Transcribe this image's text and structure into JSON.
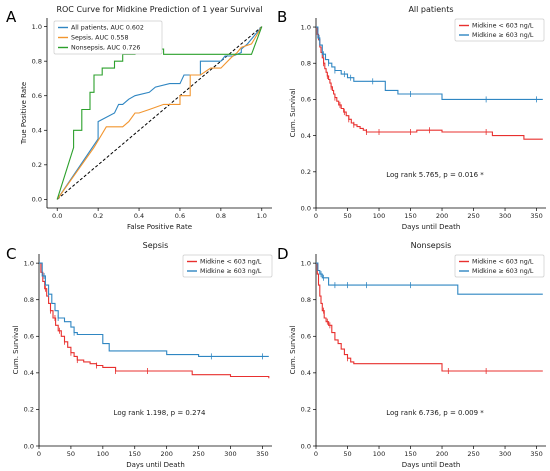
{
  "panel_letters": [
    "A",
    "B",
    "C",
    "D"
  ],
  "colors": {
    "red": "#e8302f",
    "blue": "#2f86c2",
    "orange": "#f2952f",
    "green": "#2ca02c",
    "diag": "#000000"
  },
  "chart_data": [
    {
      "letter": "A",
      "type": "line",
      "title": "ROC Curve for Midkine Prediction of 1 year Survival",
      "xlabel": "False Positive Rate",
      "ylabel": "True Positive Rate",
      "xlim": [
        -0.05,
        1.05
      ],
      "ylim": [
        -0.05,
        1.05
      ],
      "xticks": [
        "0.0",
        "0.2",
        "0.4",
        "0.6",
        "0.8",
        "1.0"
      ],
      "yticks": [
        "0.0",
        "0.2",
        "0.4",
        "0.6",
        "0.8",
        "1.0"
      ],
      "legend_position": "top-left",
      "reference_line": {
        "x": [
          0,
          1
        ],
        "y": [
          0,
          1
        ],
        "style": "dashed"
      },
      "series": [
        {
          "name": "All patients, AUC 0.602",
          "color": "#2f86c2",
          "x": [
            0,
            0.2,
            0.2,
            0.28,
            0.3,
            0.32,
            0.35,
            0.38,
            0.45,
            0.48,
            0.55,
            0.6,
            0.62,
            0.7,
            0.7,
            0.8,
            0.82,
            0.86,
            0.9,
            0.9,
            0.93,
            1.0
          ],
          "y": [
            0,
            0.35,
            0.45,
            0.5,
            0.55,
            0.55,
            0.58,
            0.6,
            0.62,
            0.65,
            0.67,
            0.67,
            0.72,
            0.72,
            0.8,
            0.8,
            0.83,
            0.83,
            0.85,
            0.87,
            0.9,
            1.0
          ]
        },
        {
          "name": "Sepsis, AUC 0.558",
          "color": "#f2952f",
          "x": [
            0,
            0.18,
            0.24,
            0.32,
            0.35,
            0.38,
            0.4,
            0.45,
            0.52,
            0.6,
            0.6,
            0.65,
            0.65,
            0.7,
            0.75,
            0.8,
            0.85,
            0.88,
            0.9,
            0.95,
            1.0
          ],
          "y": [
            0,
            0.3,
            0.42,
            0.42,
            0.45,
            0.5,
            0.5,
            0.52,
            0.55,
            0.55,
            0.6,
            0.6,
            0.72,
            0.72,
            0.76,
            0.76,
            0.82,
            0.85,
            0.88,
            0.9,
            1.0
          ]
        },
        {
          "name": "Nonsepsis, AUC 0.726",
          "color": "#2ca02c",
          "x": [
            0,
            0.08,
            0.08,
            0.12,
            0.12,
            0.16,
            0.16,
            0.18,
            0.18,
            0.22,
            0.22,
            0.28,
            0.28,
            0.32,
            0.32,
            0.38,
            0.38,
            0.52,
            0.52,
            0.95,
            1.0
          ],
          "y": [
            0,
            0.3,
            0.4,
            0.4,
            0.52,
            0.52,
            0.62,
            0.62,
            0.72,
            0.72,
            0.76,
            0.76,
            0.8,
            0.8,
            0.84,
            0.84,
            0.87,
            0.87,
            0.84,
            0.84,
            1.0
          ]
        }
      ]
    },
    {
      "letter": "B",
      "type": "line",
      "title": "All patients",
      "xlabel": "Days until Death",
      "ylabel": "Cum. Survival",
      "xlim": [
        0,
        365
      ],
      "ylim": [
        0,
        1.05
      ],
      "xticks": [
        0,
        50,
        100,
        150,
        200,
        250,
        300,
        350
      ],
      "yticks": [
        "0.0",
        "0.2",
        "0.4",
        "0.6",
        "0.8",
        "1.0"
      ],
      "legend_position": "top-right",
      "annotation": "Log rank 5.765, p = 0.016 *",
      "series": [
        {
          "name": "Midkine < 603 ng/L",
          "color": "#e8302f",
          "x": [
            0,
            2,
            4,
            6,
            8,
            10,
            12,
            14,
            16,
            18,
            20,
            22,
            24,
            26,
            28,
            30,
            33,
            36,
            40,
            44,
            48,
            52,
            56,
            60,
            65,
            70,
            75,
            80,
            90,
            100,
            110,
            120,
            140,
            160,
            180,
            200,
            240,
            280,
            330,
            360
          ],
          "y": [
            1.0,
            0.96,
            0.93,
            0.89,
            0.86,
            0.83,
            0.8,
            0.77,
            0.75,
            0.73,
            0.71,
            0.69,
            0.67,
            0.65,
            0.63,
            0.61,
            0.59,
            0.57,
            0.55,
            0.53,
            0.51,
            0.49,
            0.47,
            0.46,
            0.45,
            0.44,
            0.43,
            0.42,
            0.42,
            0.42,
            0.42,
            0.42,
            0.42,
            0.43,
            0.43,
            0.42,
            0.42,
            0.4,
            0.38,
            0.38
          ],
          "censor_x": [
            12,
            18,
            24,
            30,
            38,
            45,
            52,
            60,
            80,
            100,
            150,
            180,
            270
          ]
        },
        {
          "name": "Midkine ≥ 603 ng/L",
          "color": "#2f86c2",
          "x": [
            0,
            3,
            6,
            10,
            15,
            20,
            25,
            30,
            40,
            50,
            60,
            80,
            100,
            110,
            130,
            150,
            200,
            300,
            360
          ],
          "y": [
            1.0,
            0.94,
            0.9,
            0.85,
            0.82,
            0.8,
            0.78,
            0.76,
            0.74,
            0.72,
            0.7,
            0.7,
            0.7,
            0.65,
            0.63,
            0.63,
            0.6,
            0.6,
            0.6
          ],
          "censor_x": [
            5,
            12,
            20,
            30,
            45,
            55,
            90,
            150,
            270,
            350
          ]
        }
      ]
    },
    {
      "letter": "C",
      "type": "line",
      "title": "Sepsis",
      "xlabel": "Days until Death",
      "ylabel": "Cum. Survival",
      "xlim": [
        0,
        365
      ],
      "ylim": [
        0,
        1.05
      ],
      "xticks": [
        0,
        50,
        100,
        150,
        200,
        250,
        300,
        350
      ],
      "yticks": [
        "0.0",
        "0.2",
        "0.4",
        "0.6",
        "0.8",
        "1.0"
      ],
      "legend_position": "top-right",
      "annotation": "Log rank 1.198, p = 0.274",
      "series": [
        {
          "name": "Midkine < 603 ng/L",
          "color": "#e8302f",
          "x": [
            0,
            3,
            6,
            9,
            12,
            15,
            18,
            22,
            26,
            30,
            35,
            40,
            45,
            50,
            55,
            60,
            70,
            80,
            90,
            100,
            120,
            160,
            200,
            240,
            300,
            360
          ],
          "y": [
            1.0,
            0.95,
            0.9,
            0.86,
            0.82,
            0.78,
            0.74,
            0.7,
            0.66,
            0.63,
            0.6,
            0.57,
            0.54,
            0.51,
            0.49,
            0.47,
            0.46,
            0.45,
            0.44,
            0.43,
            0.41,
            0.41,
            0.41,
            0.39,
            0.38,
            0.37
          ],
          "censor_x": [
            10,
            18,
            25,
            32,
            40,
            50,
            60,
            90,
            120,
            170
          ]
        },
        {
          "name": "Midkine ≥ 603 ng/L",
          "color": "#2f86c2",
          "x": [
            0,
            5,
            10,
            15,
            20,
            25,
            30,
            40,
            50,
            55,
            60,
            70,
            80,
            100,
            110,
            150,
            200,
            250,
            300,
            360
          ],
          "y": [
            1.0,
            0.93,
            0.88,
            0.83,
            0.78,
            0.74,
            0.7,
            0.68,
            0.65,
            0.62,
            0.61,
            0.61,
            0.61,
            0.56,
            0.52,
            0.52,
            0.5,
            0.49,
            0.49,
            0.49
          ],
          "censor_x": [
            8,
            15,
            30,
            55,
            270,
            350
          ]
        }
      ]
    },
    {
      "letter": "D",
      "type": "line",
      "title": "Nonsepsis",
      "xlabel": "Days until Death",
      "ylabel": "Cum. Survival",
      "xlim": [
        0,
        365
      ],
      "ylim": [
        0,
        1.05
      ],
      "xticks": [
        0,
        50,
        100,
        150,
        200,
        250,
        300,
        350
      ],
      "yticks": [
        "0.0",
        "0.2",
        "0.4",
        "0.6",
        "0.8",
        "1.0"
      ],
      "legend_position": "top-right",
      "annotation": "Log rank 6.736, p = 0.009 *",
      "series": [
        {
          "name": "Midkine < 603 ng/L",
          "color": "#e8302f",
          "x": [
            0,
            2,
            4,
            6,
            8,
            10,
            13,
            16,
            20,
            25,
            30,
            35,
            40,
            45,
            50,
            55,
            60,
            80,
            120,
            200,
            360
          ],
          "y": [
            1.0,
            0.94,
            0.88,
            0.82,
            0.78,
            0.74,
            0.7,
            0.68,
            0.66,
            0.62,
            0.58,
            0.56,
            0.53,
            0.5,
            0.48,
            0.46,
            0.45,
            0.45,
            0.45,
            0.41,
            0.41
          ],
          "censor_x": [
            12,
            18,
            22,
            50,
            210,
            270
          ]
        },
        {
          "name": "Midkine ≥ 603 ng/L",
          "color": "#2f86c2",
          "x": [
            0,
            3,
            6,
            10,
            20,
            40,
            100,
            150,
            200,
            225,
            260,
            300,
            360
          ],
          "y": [
            1.0,
            0.96,
            0.94,
            0.92,
            0.88,
            0.88,
            0.88,
            0.88,
            0.88,
            0.83,
            0.83,
            0.83,
            0.83
          ],
          "censor_x": [
            8,
            12,
            30,
            50,
            80,
            150
          ]
        }
      ]
    }
  ]
}
